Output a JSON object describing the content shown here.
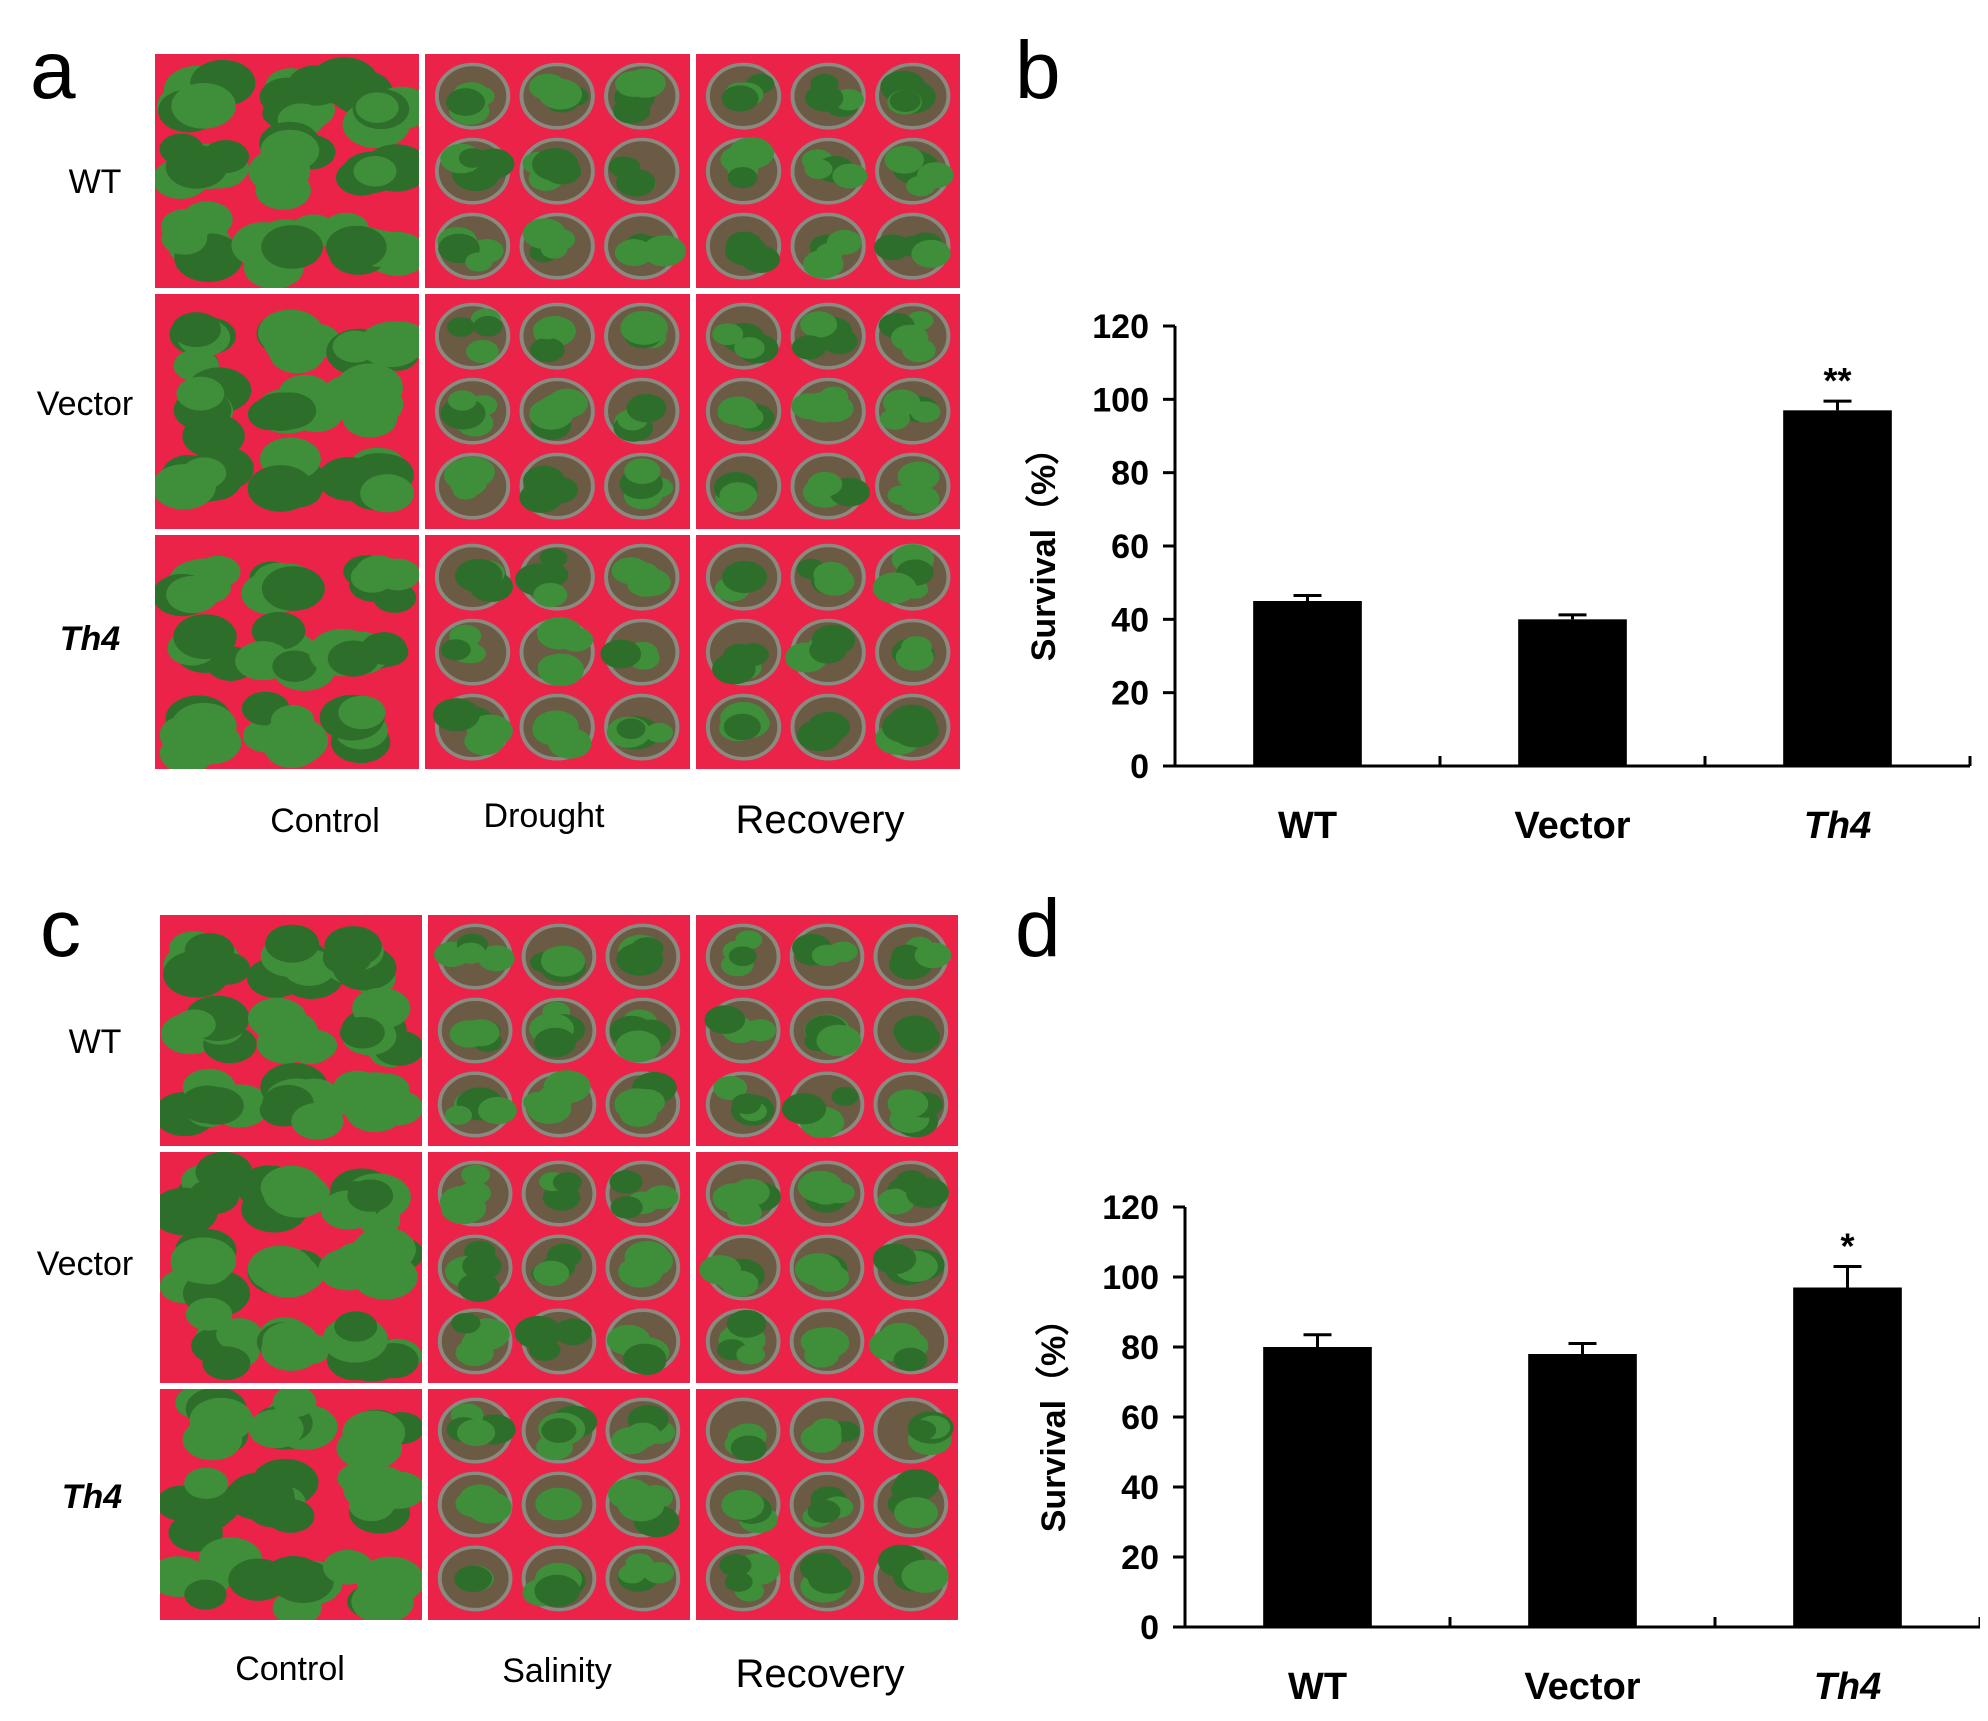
{
  "panels": {
    "a": {
      "letter": "a",
      "rows": [
        "WT",
        "Vector",
        "Th4"
      ],
      "cols": [
        "Control",
        "Drought",
        "Recovery"
      ],
      "photo_colors": {
        "background": "#ec2348",
        "leaf": "#3f8f3a",
        "leaf_dark": "#2e6e2b",
        "pot": "#8a8a80",
        "soil": "#6b5a44"
      }
    },
    "b": {
      "letter": "b"
    },
    "c": {
      "letter": "c",
      "rows": [
        "WT",
        "Vector",
        "Th4"
      ],
      "cols": [
        "Control",
        "Salinity",
        "Recovery"
      ]
    },
    "d": {
      "letter": "d"
    }
  },
  "chart_data": [
    {
      "id": "b",
      "type": "bar",
      "categories": [
        "WT",
        "Vector",
        "Th4"
      ],
      "values": [
        45,
        40,
        97
      ],
      "errors": [
        1.5,
        1.2,
        2.5
      ],
      "significance": [
        "",
        "",
        "**"
      ],
      "ylabel": "Survival（%）",
      "xlabel": "",
      "ylim": [
        0,
        120
      ],
      "yticks": [
        0,
        20,
        40,
        60,
        80,
        100,
        120
      ],
      "bar_color": "#000000"
    },
    {
      "id": "d",
      "type": "bar",
      "categories": [
        "WT",
        "Vector",
        "Th4"
      ],
      "values": [
        80,
        78,
        97
      ],
      "errors": [
        3.5,
        3,
        6
      ],
      "significance": [
        "",
        "",
        "*"
      ],
      "ylabel": "Survival（%）",
      "xlabel": "",
      "ylim": [
        0,
        120
      ],
      "yticks": [
        0,
        20,
        40,
        60,
        80,
        100,
        120
      ],
      "bar_color": "#000000"
    }
  ]
}
